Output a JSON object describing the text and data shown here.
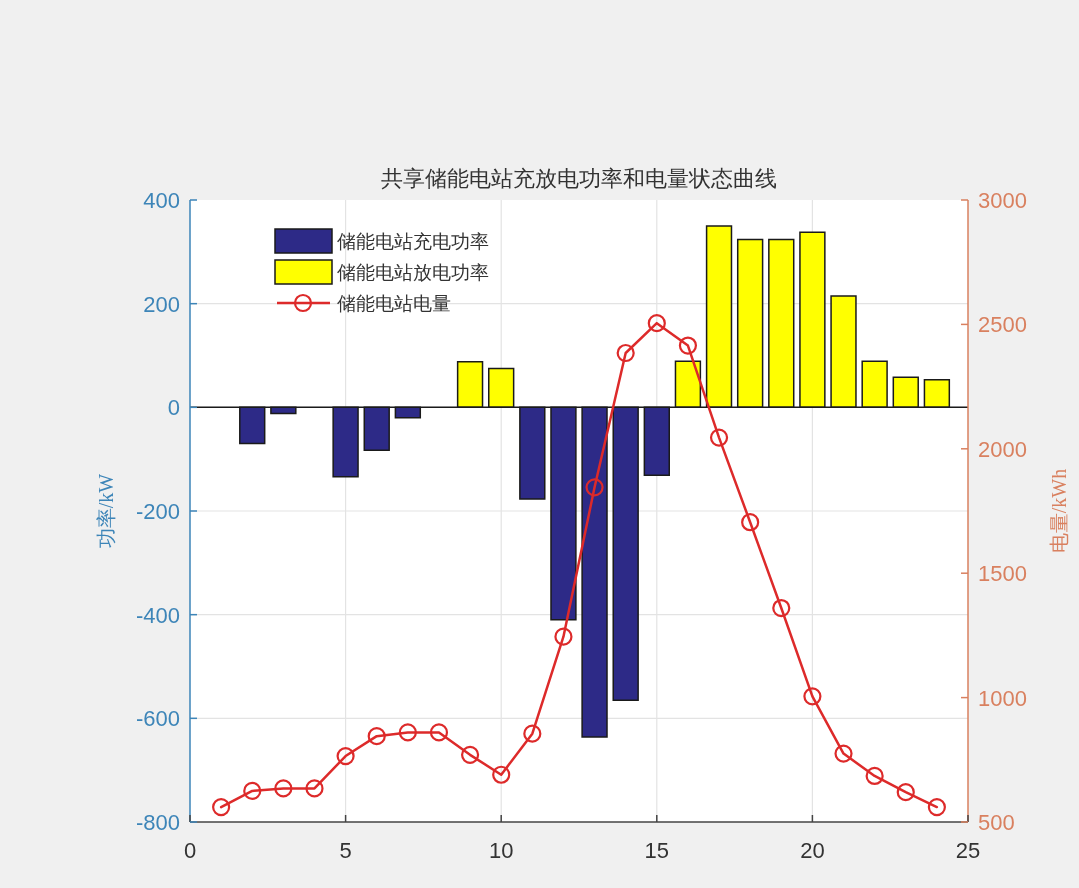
{
  "chart_data": {
    "type": "bar",
    "title": "共享储能电站充放电功率和电量状态曲线",
    "ylabel": "功率/kW",
    "y2label": "电量/kWh",
    "x": [
      1,
      2,
      3,
      4,
      5,
      6,
      7,
      8,
      9,
      10,
      11,
      12,
      13,
      14,
      15,
      16,
      17,
      18,
      19,
      20,
      21,
      22,
      23,
      24
    ],
    "series": [
      {
        "name": "储能电站充电功率",
        "color": "#2d2a87",
        "values": [
          null,
          -70,
          -12,
          null,
          -134,
          -83,
          -20,
          null,
          null,
          null,
          -177,
          -410,
          -636,
          -565,
          -131,
          null,
          null,
          null,
          null,
          null,
          null,
          null,
          null,
          null
        ]
      },
      {
        "name": "储能电站放电功率",
        "color": "#ffff00",
        "values": [
          null,
          null,
          null,
          null,
          null,
          null,
          null,
          null,
          88,
          75,
          null,
          null,
          null,
          null,
          null,
          89,
          350,
          324,
          324,
          338,
          215,
          89,
          58,
          53
        ]
      },
      {
        "name": "储能电站电量",
        "type": "line",
        "axis": "y2",
        "color": "#dd2a2a",
        "values": [
          560,
          625,
          635,
          635,
          765,
          845,
          860,
          860,
          770,
          690,
          855,
          1245,
          1845,
          2385,
          2505,
          2415,
          2045,
          1705,
          1360,
          1005,
          775,
          685,
          620,
          560
        ]
      }
    ],
    "xlim": [
      0,
      25
    ],
    "xticks": [
      0,
      5,
      10,
      15,
      20,
      25
    ],
    "ylim": [
      -800,
      400
    ],
    "yticks": [
      -800,
      -600,
      -400,
      -200,
      0,
      200,
      400
    ],
    "y2lim": [
      500,
      3000
    ],
    "y2ticks": [
      500,
      1000,
      1500,
      2000,
      2500,
      3000
    ],
    "grid": true,
    "legend": "top left",
    "marker": "circle"
  }
}
